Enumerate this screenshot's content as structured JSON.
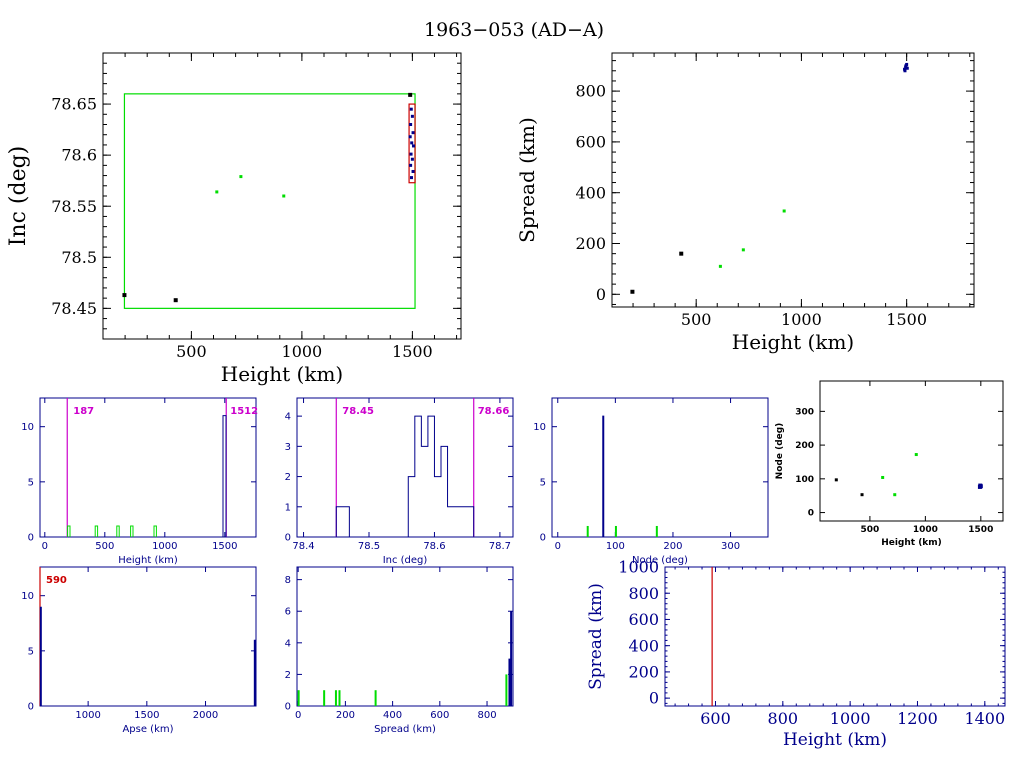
{
  "title": "1963−053 (AD−A)",
  "colors": {
    "black": "#000000",
    "green": "#00dd00",
    "blue": "#00008b",
    "magenta": "#cc00cc",
    "red": "#cc0000"
  },
  "chart_data": [
    {
      "id": "inc_vs_height",
      "type": "scatter",
      "xlabel": "Height (km)",
      "ylabel": "Inc (deg)",
      "xlim": [
        100,
        1720
      ],
      "ylim": [
        78.42,
        78.7
      ],
      "xticks": [
        500,
        1000,
        1500
      ],
      "yticks": [
        78.45,
        78.5,
        78.55,
        78.6,
        78.65
      ],
      "ytick_labels": [
        "78.45",
        "78.5",
        "78.55",
        "78.6",
        "78.65"
      ],
      "boxes": [
        {
          "x": [
            197,
            1512
          ],
          "y": [
            78.45,
            78.66
          ],
          "color": "green"
        },
        {
          "x": [
            1485,
            1512
          ],
          "y": [
            78.573,
            78.65
          ],
          "color": "red"
        }
      ],
      "series": [
        {
          "color": "black",
          "size": 4,
          "points": [
            [
              197,
              78.463
            ],
            [
              429,
              78.458
            ],
            [
              1490,
              78.659
            ]
          ]
        },
        {
          "color": "green",
          "size": 3,
          "points": [
            [
              615,
              78.564
            ],
            [
              724,
              78.579
            ],
            [
              918,
              78.56
            ]
          ]
        },
        {
          "color": "blue",
          "size": 3,
          "points": [
            [
              1495,
              78.645
            ],
            [
              1500,
              78.638
            ],
            [
              1492,
              78.63
            ],
            [
              1503,
              78.622
            ],
            [
              1490,
              78.618
            ],
            [
              1497,
              78.612
            ],
            [
              1505,
              78.609
            ],
            [
              1494,
              78.601
            ],
            [
              1500,
              78.596
            ],
            [
              1492,
              78.59
            ],
            [
              1503,
              78.584
            ],
            [
              1496,
              78.578
            ]
          ]
        }
      ]
    },
    {
      "id": "spread_vs_height",
      "type": "scatter",
      "xlabel": "Height (km)",
      "ylabel": "Spread (km)",
      "xlim": [
        100,
        1820
      ],
      "ylim": [
        -50,
        950
      ],
      "xticks": [
        500,
        1000,
        1500
      ],
      "yticks": [
        0,
        200,
        400,
        600,
        800
      ],
      "series": [
        {
          "color": "black",
          "size": 4,
          "points": [
            [
              197,
              10
            ],
            [
              429,
              160
            ]
          ]
        },
        {
          "color": "green",
          "size": 3,
          "points": [
            [
              615,
              110
            ],
            [
              724,
              175
            ],
            [
              918,
              328
            ]
          ]
        },
        {
          "color": "blue",
          "size": 3,
          "points": [
            [
              1495,
              895
            ],
            [
              1500,
              905
            ],
            [
              1492,
              880
            ],
            [
              1503,
              890
            ],
            [
              1497,
              900
            ],
            [
              1490,
              886
            ]
          ]
        }
      ]
    },
    {
      "id": "height_hist",
      "type": "bar",
      "xlabel": "Height (km)",
      "xlim": [
        -40,
        1760
      ],
      "ylim": [
        0,
        12.6
      ],
      "xticks": [
        0,
        500,
        1000,
        1500
      ],
      "yticks": [
        0,
        5,
        10
      ],
      "vlines": [
        {
          "x": 187,
          "label": "187",
          "color": "magenta"
        },
        {
          "x": 1512,
          "label": "1512",
          "color": "magenta"
        }
      ],
      "bars": [
        {
          "color": "green",
          "style": "outline",
          "x0": 190,
          "x1": 210,
          "values": [
            1
          ]
        },
        {
          "color": "green",
          "style": "outline",
          "x0": 420,
          "x1": 440,
          "values": [
            1
          ]
        },
        {
          "color": "green",
          "style": "outline",
          "x0": 600,
          "x1": 620,
          "values": [
            1
          ]
        },
        {
          "color": "green",
          "style": "outline",
          "x0": 715,
          "x1": 735,
          "values": [
            1
          ]
        },
        {
          "color": "green",
          "style": "outline",
          "x0": 910,
          "x1": 930,
          "values": [
            1
          ]
        },
        {
          "color": "blue",
          "style": "outline",
          "x0": 1485,
          "x1": 1510,
          "values": [
            11
          ]
        }
      ]
    },
    {
      "id": "inc_hist",
      "type": "bar",
      "xlabel": "Inc (deg)",
      "xlim": [
        78.39,
        78.72
      ],
      "ylim": [
        0,
        4.6
      ],
      "xticks": [
        78.4,
        78.5,
        78.6,
        78.7
      ],
      "yticks": [
        0,
        1,
        2,
        3,
        4
      ],
      "xtick_labels": [
        "78.4",
        "78.5",
        "78.6",
        "78.7"
      ],
      "vlines": [
        {
          "x": 78.45,
          "label": "78.45",
          "color": "magenta"
        },
        {
          "x": 78.66,
          "label": "78.66",
          "color": "magenta"
        }
      ],
      "steps": [
        {
          "color": "blue",
          "edges": [
            78.45,
            78.46,
            78.47,
            78.56,
            78.57,
            78.58,
            78.59,
            78.6,
            78.61,
            78.62,
            78.63,
            78.66
          ],
          "values": [
            1,
            1,
            0,
            2,
            4,
            3,
            4,
            2,
            3,
            1,
            1
          ]
        }
      ]
    },
    {
      "id": "node_hist",
      "type": "bar",
      "xlabel": "Node (deg)",
      "xlim": [
        -10,
        365
      ],
      "ylim": [
        0,
        12.6
      ],
      "xticks": [
        0,
        100,
        200,
        300
      ],
      "yticks": [
        0,
        5,
        10
      ],
      "bars": [
        {
          "color": "green",
          "style": "solid",
          "x": 52,
          "value": 1
        },
        {
          "color": "green",
          "style": "solid",
          "x": 101,
          "value": 1
        },
        {
          "color": "green",
          "style": "solid",
          "x": 172,
          "value": 1
        },
        {
          "color": "blue",
          "style": "solid",
          "x": 79,
          "value": 11
        }
      ]
    },
    {
      "id": "node_vs_height",
      "type": "scatter",
      "xlabel": "Height (km)",
      "ylabel": "Node (deg)",
      "xlim": [
        50,
        1700
      ],
      "ylim": [
        -25,
        390
      ],
      "xticks": [
        500,
        1000,
        1500
      ],
      "yticks": [
        0,
        100,
        200,
        300
      ],
      "series": [
        {
          "color": "black",
          "size": 3,
          "points": [
            [
              197,
              97
            ],
            [
              429,
              53
            ]
          ]
        },
        {
          "color": "green",
          "size": 3,
          "points": [
            [
              615,
              104
            ],
            [
              724,
              53
            ],
            [
              918,
              172
            ]
          ]
        },
        {
          "color": "blue",
          "size": 4,
          "points": [
            [
              1495,
              80
            ],
            [
              1500,
              78
            ],
            [
              1492,
              76
            ]
          ]
        }
      ]
    },
    {
      "id": "apse_hist",
      "type": "bar",
      "xlabel": "Apse (km)",
      "xlim": [
        590,
        2430
      ],
      "ylim": [
        0,
        12.6
      ],
      "xticks": [
        1000,
        1500,
        2000
      ],
      "yticks": [
        0,
        5,
        10
      ],
      "vlines": [
        {
          "x": 590,
          "label": "590",
          "color": "red"
        }
      ],
      "bars": [
        {
          "color": "blue",
          "style": "solid",
          "x": 597,
          "value": 9
        },
        {
          "color": "blue",
          "style": "solid",
          "x": 2420,
          "value": 6
        }
      ]
    },
    {
      "id": "spread_hist",
      "type": "bar",
      "xlabel": "Spread (km)",
      "xlim": [
        -5,
        910
      ],
      "ylim": [
        0,
        8.8
      ],
      "xticks": [
        0,
        200,
        400,
        600,
        800
      ],
      "yticks": [
        0,
        2,
        4,
        6,
        8
      ],
      "bars": [
        {
          "color": "green",
          "style": "solid",
          "x": 2,
          "value": 1
        },
        {
          "color": "green",
          "style": "solid",
          "x": 110,
          "value": 1
        },
        {
          "color": "green",
          "style": "solid",
          "x": 160,
          "value": 1
        },
        {
          "color": "green",
          "style": "solid",
          "x": 175,
          "value": 1
        },
        {
          "color": "green",
          "style": "solid",
          "x": 328,
          "value": 1
        },
        {
          "color": "green",
          "style": "solid",
          "x": 882,
          "value": 2
        },
        {
          "color": "blue",
          "style": "solid",
          "x": 895,
          "value": 3
        },
        {
          "color": "blue",
          "style": "solid",
          "x": 902,
          "value": 6
        }
      ]
    },
    {
      "id": "spread_vs_height_2",
      "type": "line",
      "xlabel": "Height (km)",
      "ylabel": "Spread (km)",
      "xlim": [
        450,
        1460
      ],
      "ylim": [
        -60,
        1000
      ],
      "xticks": [
        600,
        800,
        1000,
        1200,
        1400
      ],
      "yticks": [
        0,
        200,
        400,
        600,
        800,
        1000
      ],
      "vlines": [
        {
          "x": 590,
          "label": "",
          "color": "red"
        }
      ]
    }
  ]
}
